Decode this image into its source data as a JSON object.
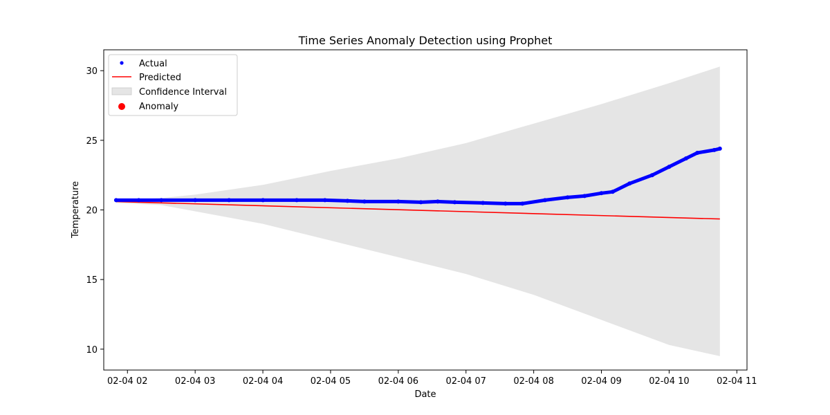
{
  "chart_data": {
    "type": "line",
    "title": "Time Series Anomaly Detection using Prophet",
    "xlabel": "Date",
    "ylabel": "Temperature",
    "x_range": [
      "2021-02-04 01:39",
      "2021-02-04 11:09"
    ],
    "ylim": [
      8.5,
      31.5
    ],
    "x_ticks": [
      {
        "t": "2021-02-04 02:00",
        "label": "02-04 02"
      },
      {
        "t": "2021-02-04 03:00",
        "label": "02-04 03"
      },
      {
        "t": "2021-02-04 04:00",
        "label": "02-04 04"
      },
      {
        "t": "2021-02-04 05:00",
        "label": "02-04 05"
      },
      {
        "t": "2021-02-04 06:00",
        "label": "02-04 06"
      },
      {
        "t": "2021-02-04 07:00",
        "label": "02-04 07"
      },
      {
        "t": "2021-02-04 08:00",
        "label": "02-04 08"
      },
      {
        "t": "2021-02-04 09:00",
        "label": "02-04 09"
      },
      {
        "t": "2021-02-04 10:00",
        "label": "02-04 10"
      },
      {
        "t": "2021-02-04 11:00",
        "label": "02-04 11"
      }
    ],
    "y_ticks": [
      {
        "v": 10,
        "label": "10"
      },
      {
        "v": 15,
        "label": "15"
      },
      {
        "v": 20,
        "label": "20"
      },
      {
        "v": 25,
        "label": "25"
      },
      {
        "v": 30,
        "label": "30"
      }
    ],
    "grid": false,
    "legend_position": "top-left",
    "colors": {
      "actual": "#0000ff",
      "predicted": "#ff0000",
      "confidence": "#d3d3d3",
      "anomaly": "#ff0000"
    },
    "series": [
      {
        "name": "Actual",
        "kind": "points",
        "x": [
          "2021-02-04 01:50",
          "2021-02-04 02:10",
          "2021-02-04 02:30",
          "2021-02-04 03:00",
          "2021-02-04 03:30",
          "2021-02-04 04:00",
          "2021-02-04 04:30",
          "2021-02-04 04:55",
          "2021-02-04 05:15",
          "2021-02-04 05:30",
          "2021-02-04 06:00",
          "2021-02-04 06:20",
          "2021-02-04 06:35",
          "2021-02-04 06:50",
          "2021-02-04 07:15",
          "2021-02-04 07:35",
          "2021-02-04 07:50",
          "2021-02-04 08:10",
          "2021-02-04 08:30",
          "2021-02-04 08:45",
          "2021-02-04 09:00",
          "2021-02-04 09:10",
          "2021-02-04 09:25",
          "2021-02-04 09:45",
          "2021-02-04 10:00",
          "2021-02-04 10:15",
          "2021-02-04 10:25",
          "2021-02-04 10:40",
          "2021-02-04 10:45"
        ],
        "values": [
          20.7,
          20.7,
          20.7,
          20.7,
          20.7,
          20.7,
          20.7,
          20.7,
          20.65,
          20.6,
          20.6,
          20.55,
          20.6,
          20.55,
          20.5,
          20.45,
          20.45,
          20.7,
          20.9,
          21.0,
          21.2,
          21.3,
          21.9,
          22.5,
          23.1,
          23.7,
          24.1,
          24.3,
          24.4
        ]
      },
      {
        "name": "Predicted",
        "kind": "line",
        "x": [
          "2021-02-04 01:50",
          "2021-02-04 10:45"
        ],
        "values": [
          20.6,
          19.35
        ]
      },
      {
        "name": "Confidence Interval",
        "kind": "band",
        "x": [
          "2021-02-04 01:50",
          "2021-02-04 02:30",
          "2021-02-04 03:00",
          "2021-02-04 04:00",
          "2021-02-04 05:00",
          "2021-02-04 06:00",
          "2021-02-04 07:00",
          "2021-02-04 08:00",
          "2021-02-04 09:00",
          "2021-02-04 10:00",
          "2021-02-04 10:45"
        ],
        "upper": [
          20.7,
          20.85,
          21.1,
          21.8,
          22.8,
          23.7,
          24.8,
          26.2,
          27.6,
          29.1,
          30.3
        ],
        "lower": [
          20.5,
          20.35,
          19.9,
          19.0,
          17.8,
          16.6,
          15.4,
          13.9,
          12.1,
          10.3,
          9.5
        ]
      },
      {
        "name": "Anomaly",
        "kind": "scatter",
        "x": [],
        "values": []
      }
    ]
  }
}
